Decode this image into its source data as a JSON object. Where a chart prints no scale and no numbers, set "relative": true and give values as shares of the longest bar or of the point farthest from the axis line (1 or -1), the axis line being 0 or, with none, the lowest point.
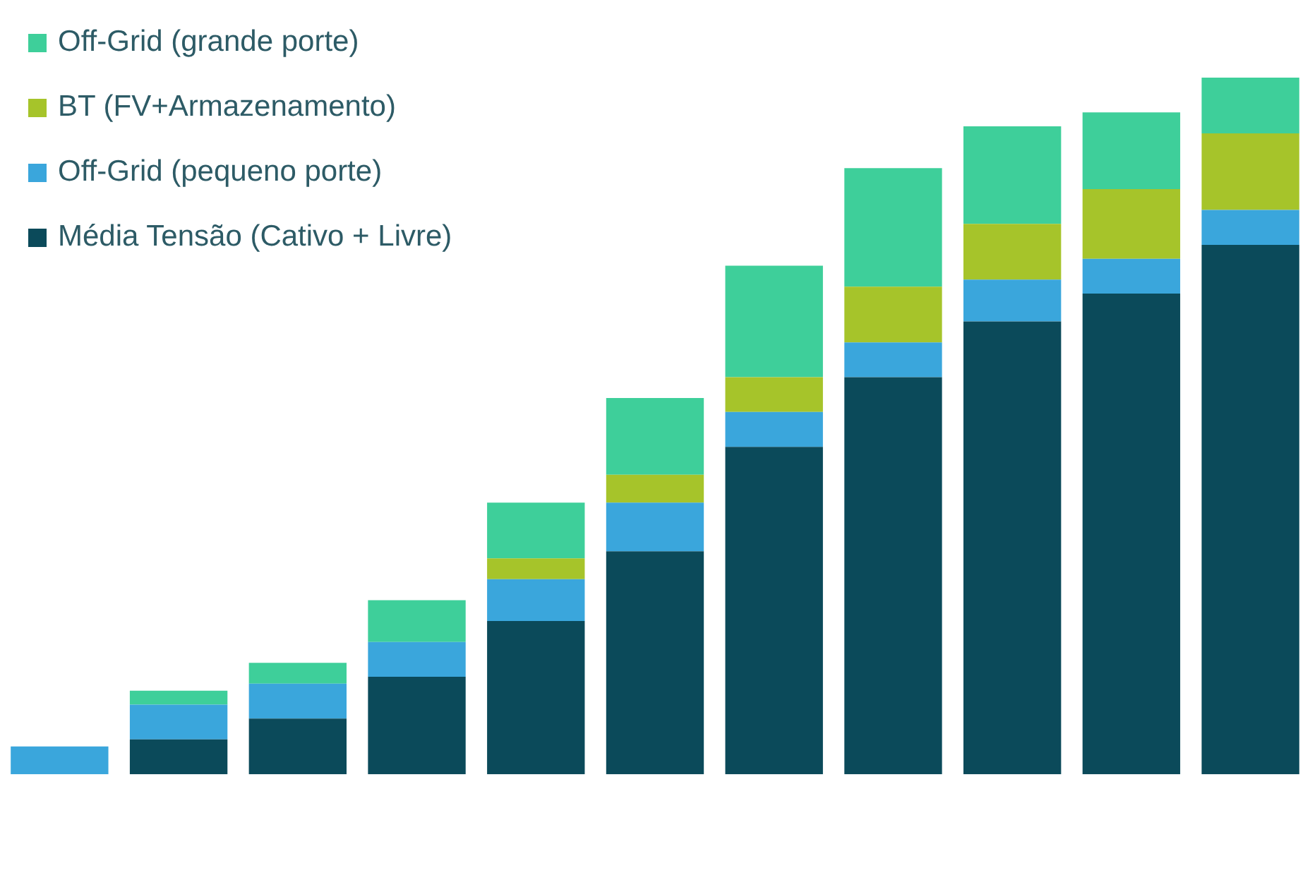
{
  "chart_data": {
    "type": "bar",
    "stacked": true,
    "relative": true,
    "legend": "top left",
    "categories": [
      null,
      null,
      null,
      null,
      null,
      null,
      null,
      null,
      null,
      null,
      null
    ],
    "series": [
      {
        "name": "Média Tensão (Cativo + Livre)",
        "color": "#0b4a5a",
        "values": [
          0,
          0.05,
          0.08,
          0.14,
          0.22,
          0.32,
          0.47,
          0.57,
          0.65,
          0.69,
          0.76
        ]
      },
      {
        "name": "Off-Grid (pequeno porte)",
        "color": "#3aa6dc",
        "values": [
          0.04,
          0.05,
          0.05,
          0.05,
          0.06,
          0.07,
          0.05,
          0.05,
          0.06,
          0.05,
          0.05
        ]
      },
      {
        "name": "BT (FV+Armazenamento)",
        "color": "#a6c42a",
        "values": [
          0,
          0,
          0,
          0,
          0.03,
          0.04,
          0.05,
          0.08,
          0.08,
          0.1,
          0.11
        ]
      },
      {
        "name": "Off-Grid (grande porte)",
        "color": "#3ecf9a",
        "values": [
          0,
          0.02,
          0.03,
          0.06,
          0.08,
          0.11,
          0.16,
          0.17,
          0.14,
          0.11,
          0.08
        ]
      }
    ]
  }
}
